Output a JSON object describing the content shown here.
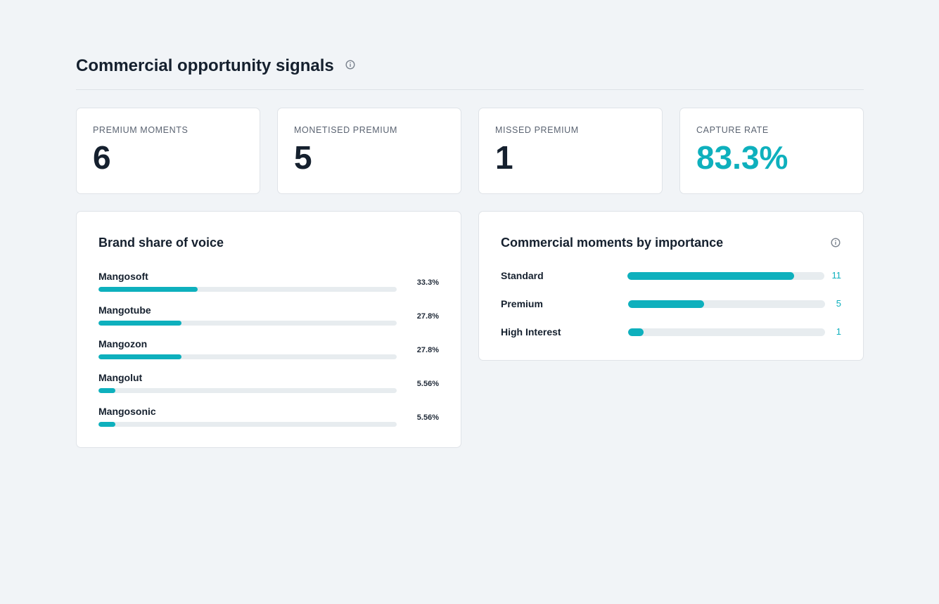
{
  "header": {
    "title": "Commercial opportunity signals",
    "info_icon": "info-icon"
  },
  "stats": [
    {
      "label": "PREMIUM MOMENTS",
      "value": "6"
    },
    {
      "label": "MONETISED PREMIUM",
      "value": "5"
    },
    {
      "label": "MISSED PREMIUM",
      "value": "1"
    },
    {
      "label": "CAPTURE RATE",
      "value": "83.3%"
    }
  ],
  "brand_share": {
    "title": "Brand share of voice",
    "items": [
      {
        "name": "Mangosoft",
        "pct_label": "33.3%",
        "share": 0.333
      },
      {
        "name": "Mangotube",
        "pct_label": "27.8%",
        "share": 0.278
      },
      {
        "name": "Mangozon",
        "pct_label": "27.8%",
        "share": 0.278
      },
      {
        "name": "Mangolut",
        "pct_label": "5.56%",
        "share": 0.0556
      },
      {
        "name": "Mangosonic",
        "pct_label": "5.56%",
        "share": 0.0556
      }
    ]
  },
  "importance": {
    "title": "Commercial moments by importance",
    "info_icon": "info-icon",
    "max": 13,
    "items": [
      {
        "name": "Standard",
        "count": "11",
        "value": 11
      },
      {
        "name": "Premium",
        "count": "5",
        "value": 5
      },
      {
        "name": "High Interest",
        "count": "1",
        "value": 1
      }
    ]
  },
  "colors": {
    "accent": "#0eb0bd",
    "track": "#e7ecef",
    "background": "#f1f4f7",
    "text": "#15202e"
  }
}
